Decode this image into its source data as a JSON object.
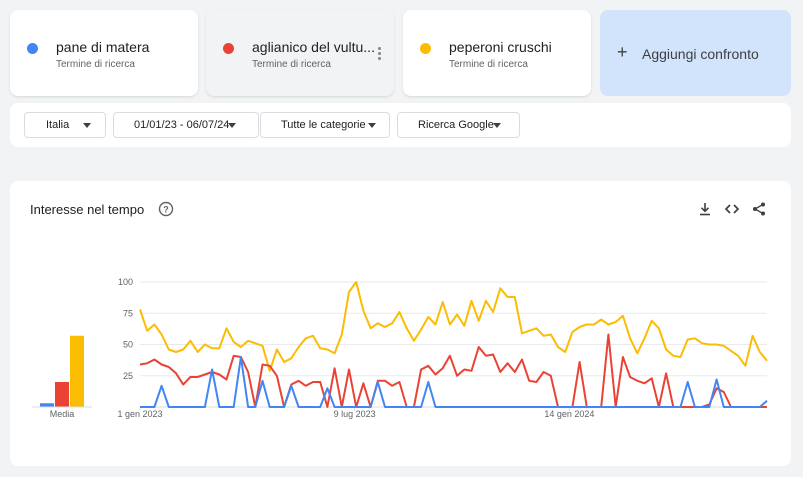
{
  "terms": [
    {
      "name": "pane di matera",
      "sub": "Termine di ricerca",
      "color": "#4285f4"
    },
    {
      "name": "aglianico del vultu...",
      "sub": "Termine di ricerca",
      "color": "#ea4335"
    },
    {
      "name": "peperoni cruschi",
      "sub": "Termine di ricerca",
      "color": "#fbbc04"
    }
  ],
  "add_compare": {
    "plus": "+",
    "label": "Aggiungi confronto"
  },
  "filters": {
    "region": "Italia",
    "date_range": "01/01/23 - 06/07/24",
    "category": "Tutte le categorie",
    "source": "Ricerca Google"
  },
  "panel": {
    "title": "Interesse nel tempo",
    "icons": [
      "help-icon",
      "download-icon",
      "embed-icon",
      "share-icon"
    ]
  },
  "chart_data": {
    "type": "line",
    "title": "",
    "ylim": [
      0,
      100
    ],
    "yticks": [
      25,
      50,
      75,
      100
    ],
    "x_start": "1 gen 2023",
    "x_end": "6 lug 2024",
    "x_tick_labels": [
      "1 gen 2023",
      "9 lug 2023",
      "14 gen 2024"
    ],
    "grid": true,
    "averages_label": "Media",
    "averages": [
      {
        "name": "pane di matera",
        "value": 3,
        "color": "#4285f4"
      },
      {
        "name": "aglianico del vultu...",
        "value": 20,
        "color": "#ea4335"
      },
      {
        "name": "peperoni cruschi",
        "value": 57,
        "color": "#fbbc04"
      }
    ],
    "series": [
      {
        "name": "peperoni cruschi",
        "color": "#fbbc04",
        "values": [
          78,
          61,
          66,
          58,
          46,
          44,
          46,
          53,
          44,
          50,
          47,
          47,
          63,
          52,
          48,
          53,
          51,
          49,
          29,
          46,
          36,
          39,
          48,
          55,
          57,
          47,
          46,
          43,
          58,
          92,
          100,
          77,
          63,
          67,
          64,
          67,
          76,
          63,
          53,
          62,
          72,
          66,
          84,
          66,
          74,
          65,
          85,
          69,
          85,
          76,
          95,
          88,
          88,
          59,
          61,
          63,
          57,
          58,
          48,
          44,
          60,
          64,
          66,
          66,
          70,
          66,
          68,
          73,
          55,
          43,
          55,
          69,
          63,
          46,
          41,
          40,
          54,
          55,
          51,
          50,
          50,
          49,
          45,
          41,
          33,
          57,
          44,
          37
        ]
      },
      {
        "name": "aglianico del vultu...",
        "color": "#ea4335",
        "values": [
          34,
          35,
          38,
          34,
          32,
          27,
          18,
          24,
          24,
          26,
          28,
          26,
          22,
          41,
          40,
          28,
          0,
          34,
          33,
          25,
          0,
          18,
          21,
          17,
          20,
          20,
          0,
          31,
          0,
          30,
          0,
          19,
          0,
          21,
          21,
          17,
          20,
          0,
          0,
          30,
          33,
          26,
          31,
          41,
          25,
          30,
          29,
          48,
          41,
          42,
          28,
          35,
          28,
          38,
          21,
          20,
          28,
          25,
          0,
          0,
          0,
          36,
          0,
          0,
          0,
          58,
          0,
          40,
          24,
          21,
          19,
          23,
          0,
          27,
          0,
          0,
          0,
          0,
          0,
          2,
          15,
          12,
          0,
          0,
          0,
          0,
          0,
          0
        ]
      },
      {
        "name": "pane di matera",
        "color": "#4285f4",
        "values": [
          0,
          0,
          0,
          17,
          0,
          0,
          0,
          0,
          0,
          0,
          30,
          0,
          0,
          0,
          40,
          0,
          0,
          21,
          0,
          0,
          0,
          17,
          0,
          0,
          0,
          0,
          15,
          0,
          0,
          0,
          0,
          0,
          0,
          20,
          0,
          0,
          0,
          0,
          0,
          0,
          20,
          0,
          0,
          0,
          0,
          0,
          0,
          0,
          0,
          0,
          0,
          0,
          0,
          0,
          0,
          0,
          0,
          0,
          0,
          0,
          0,
          0,
          0,
          0,
          0,
          0,
          0,
          0,
          0,
          0,
          0,
          0,
          0,
          0,
          0,
          0,
          20,
          0,
          0,
          0,
          22,
          0,
          0,
          0,
          0,
          0,
          0,
          5
        ]
      }
    ]
  }
}
